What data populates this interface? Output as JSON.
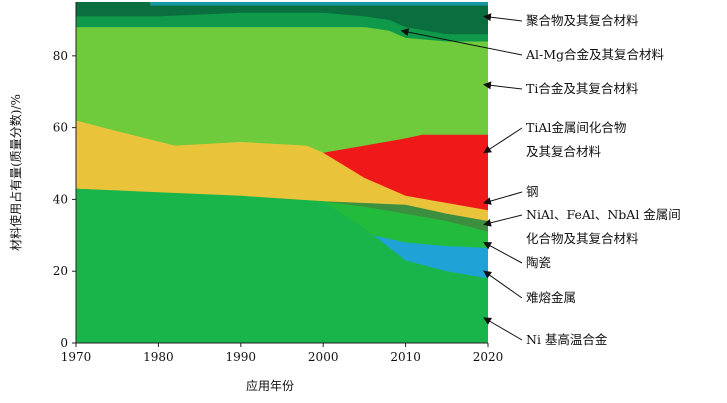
{
  "chart_data": {
    "type": "area",
    "title": "",
    "xlabel": "应用年份",
    "ylabel": "材料使用占有量(质量分数)/%",
    "xlim": [
      1970,
      2020
    ],
    "ylim": [
      0,
      95
    ],
    "x_ticks": [
      1970,
      1980,
      1990,
      2000,
      2010,
      2020
    ],
    "y_ticks": [
      0,
      20,
      40,
      60,
      80
    ],
    "colors": {
      "ni": "#19b54a",
      "refractory": "#1fa3d6",
      "ceramics": "#23bb3c",
      "intermetallic": "#3c8f3e",
      "steel": "#e9c33a",
      "tial": "#f01919",
      "ti": "#6fca3c",
      "almg": "#0e9a4a",
      "polymer": "#0b6e3e",
      "top": "#1796a6"
    },
    "series": [
      {
        "key": "ni",
        "name": "Ni 基高温合金",
        "x": [
          1970,
          1980,
          1990,
          2000,
          2005,
          2010,
          2015,
          2020
        ],
        "upper": [
          43,
          42,
          41,
          39.5,
          32,
          23,
          20,
          18
        ]
      },
      {
        "key": "refractory",
        "name": "难熔金属",
        "x": [
          2004,
          2010,
          2015,
          2020
        ],
        "upper": [
          31,
          28,
          27,
          26.5
        ]
      },
      {
        "key": "ceramics",
        "name": "陶瓷",
        "x": [
          1970,
          2000,
          2005,
          2010,
          2015,
          2020
        ],
        "upper": [
          43,
          39.5,
          38,
          36,
          34,
          31
        ]
      },
      {
        "key": "intermetallic",
        "name": "NiAl、FeAl、NbAl 金属间化合物及其复合材料",
        "x": [
          1970,
          2000,
          2005,
          2010,
          2015,
          2020
        ],
        "upper": [
          43,
          39.5,
          39,
          38.5,
          36,
          34
        ]
      },
      {
        "key": "steel",
        "name": "钢",
        "x": [
          1970,
          1975,
          1982,
          1990,
          1998,
          2000,
          2005,
          2010,
          2015,
          2020
        ],
        "upper": [
          62,
          59,
          55,
          56,
          55,
          53,
          46,
          41,
          39,
          37
        ]
      },
      {
        "key": "tial",
        "name": "TiAl金属间化合物及其复合材料",
        "x": [
          2000,
          2005,
          2010,
          2012,
          2015,
          2020
        ],
        "upper": [
          53,
          55,
          57,
          58,
          58,
          58
        ]
      },
      {
        "key": "ti",
        "name": "Ti合金及其复合材料",
        "x": [
          1970,
          1980,
          1990,
          2000,
          2005,
          2008,
          2010,
          2015,
          2020
        ],
        "upper": [
          88,
          88,
          88,
          88,
          88,
          87,
          85,
          84,
          84
        ]
      },
      {
        "key": "almg",
        "name": "Al-Mg合金及其复合材料",
        "x": [
          1970,
          1980,
          1990,
          2000,
          2005,
          2008,
          2010,
          2015,
          2020
        ],
        "upper": [
          91,
          91,
          92,
          92,
          91,
          90,
          88,
          86,
          86
        ]
      },
      {
        "key": "polymer",
        "name": "聚合物及其复合材料",
        "x": [
          1970,
          1980,
          1990,
          2000,
          2005,
          2010,
          2015,
          2020
        ],
        "upper": [
          95,
          95,
          95,
          95,
          95,
          95,
          95,
          95
        ]
      }
    ],
    "legend": [
      {
        "key": "polymer",
        "lines": [
          "聚合物及其复合材料"
        ],
        "pointer": [
          2020,
          91
        ]
      },
      {
        "key": "almg",
        "lines": [
          "Al-Mg合金及其复合材料"
        ],
        "pointer": [
          2010,
          87
        ]
      },
      {
        "key": "ti",
        "lines": [
          "Ti合金及其复合材料"
        ],
        "pointer": [
          2020,
          72
        ]
      },
      {
        "key": "tial",
        "lines": [
          "TiAl金属间化合物",
          "及其复合材料"
        ],
        "pointer": [
          2020,
          53
        ]
      },
      {
        "key": "steel",
        "lines": [
          "钢"
        ],
        "pointer": [
          2020,
          39
        ]
      },
      {
        "key": "intermetallic",
        "lines": [
          "NiAl、FeAl、NbAl 金属间",
          "化合物及其复合材料"
        ],
        "pointer": [
          2020,
          33
        ]
      },
      {
        "key": "ceramics",
        "lines": [
          "陶瓷"
        ],
        "pointer": [
          2020,
          28
        ]
      },
      {
        "key": "refractory",
        "lines": [
          "难熔金属"
        ],
        "pointer": [
          2020,
          20
        ]
      },
      {
        "key": "ni",
        "lines": [
          "Ni 基高温合金"
        ],
        "pointer": [
          2020,
          7
        ]
      }
    ]
  }
}
